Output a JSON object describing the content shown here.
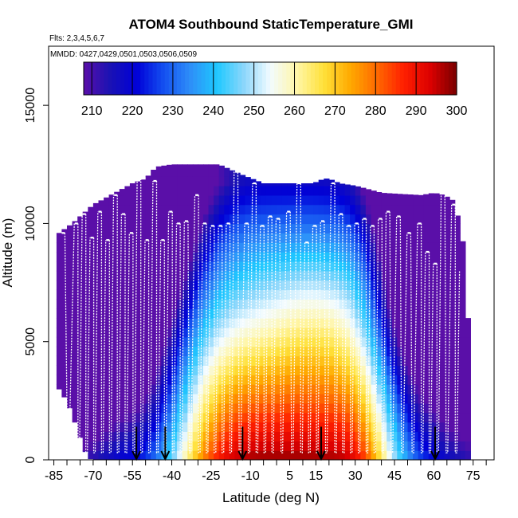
{
  "chart_data": {
    "type": "heatmap",
    "title": "ATOM4 Southbound StaticTemperature_GMI",
    "annotations": [
      "Flts: 2,3,4,5,6,7",
      "MMDD: 0427,0429,0501,0503,0506,0509"
    ],
    "xlabel": "Latitude (deg N)",
    "ylabel": "Altitude (m)",
    "xlim": [
      -87,
      83
    ],
    "ylim": [
      0,
      17500
    ],
    "xticks": [
      -85,
      -70,
      -55,
      -40,
      -25,
      -10,
      5,
      15,
      30,
      45,
      60,
      75
    ],
    "xtick_labels": [
      "-85",
      "-70",
      "-55",
      "-40",
      "-25",
      "-10",
      "5",
      "15",
      "30",
      "45",
      "60",
      "75"
    ],
    "yticks": [
      0,
      5000,
      10000,
      15000
    ],
    "ytick_labels": [
      "0",
      "5000",
      "10000",
      "15000"
    ],
    "colorbar": {
      "range": [
        208,
        300
      ],
      "tick_values": [
        210,
        220,
        230,
        240,
        250,
        260,
        270,
        280,
        290,
        300
      ],
      "tick_labels": [
        "210",
        "220",
        "230",
        "240",
        "250",
        "260",
        "270",
        "280",
        "290",
        "300"
      ],
      "colors": [
        "#5a0fa8",
        "#1a12b4",
        "#0000d8",
        "#1450f0",
        "#2e8ef8",
        "#1ec8ff",
        "#8ad6fb",
        "#f2fbff",
        "#fff6a8",
        "#ffe13a",
        "#ffaa00",
        "#ff6a00",
        "#ff2000",
        "#dc0000",
        "#780000"
      ]
    },
    "arrow_latitudes": [
      -53.5,
      -42.5,
      -13,
      17,
      60.5
    ],
    "profile_colors": {
      "line": "#ffffff"
    },
    "grid": false,
    "legend": "none"
  }
}
